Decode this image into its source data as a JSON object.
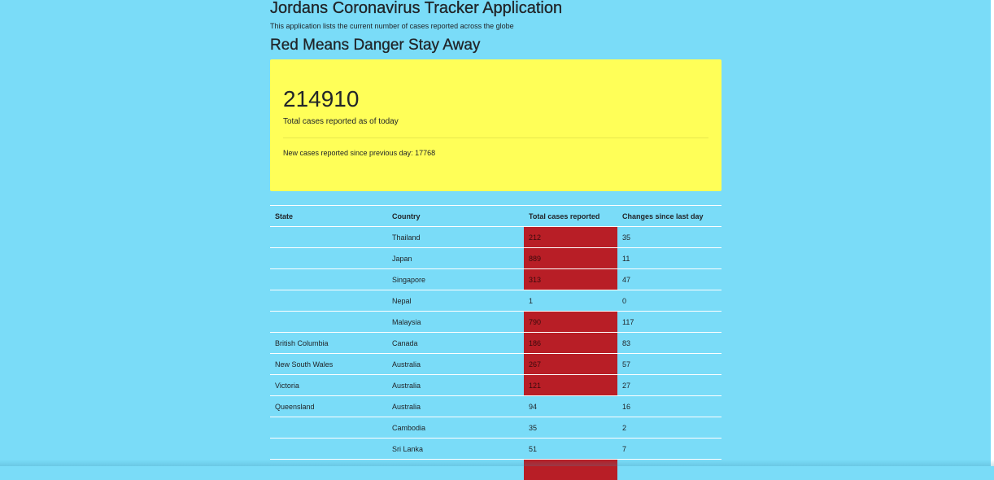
{
  "app": {
    "title": "Jordans Coronavirus Tracker Application",
    "subtitle": "This application lists the current number of cases reported across the globe",
    "warning_heading": "Red Means Danger Stay Away"
  },
  "summary": {
    "total_cases": "214910",
    "total_label": "Total cases reported as of today",
    "new_cases_text": "New cases reported since previous day: 17768"
  },
  "colors": {
    "background": "#7adcf8",
    "highlight_panel": "#ffff58",
    "danger": "#b81e26"
  },
  "table": {
    "headers": [
      "State",
      "Country",
      "Total cases reported",
      "Changes since last day"
    ],
    "rows": [
      {
        "state": "",
        "country": "Thailand",
        "total": "212",
        "change": "35",
        "danger": true
      },
      {
        "state": "",
        "country": "Japan",
        "total": "889",
        "change": "11",
        "danger": true
      },
      {
        "state": "",
        "country": "Singapore",
        "total": "313",
        "change": "47",
        "danger": true
      },
      {
        "state": "",
        "country": "Nepal",
        "total": "1",
        "change": "0",
        "danger": false
      },
      {
        "state": "",
        "country": "Malaysia",
        "total": "790",
        "change": "117",
        "danger": true
      },
      {
        "state": "British Columbia",
        "country": "Canada",
        "total": "186",
        "change": "83",
        "danger": true
      },
      {
        "state": "New South Wales",
        "country": "Australia",
        "total": "267",
        "change": "57",
        "danger": true
      },
      {
        "state": "Victoria",
        "country": "Australia",
        "total": "121",
        "change": "27",
        "danger": true
      },
      {
        "state": "Queensland",
        "country": "Australia",
        "total": "94",
        "change": "16",
        "danger": false
      },
      {
        "state": "",
        "country": "Cambodia",
        "total": "35",
        "change": "2",
        "danger": false
      },
      {
        "state": "",
        "country": "Sri Lanka",
        "total": "51",
        "change": "7",
        "danger": false
      },
      {
        "state": "",
        "country": "",
        "total": "",
        "change": "",
        "danger": true
      }
    ]
  }
}
